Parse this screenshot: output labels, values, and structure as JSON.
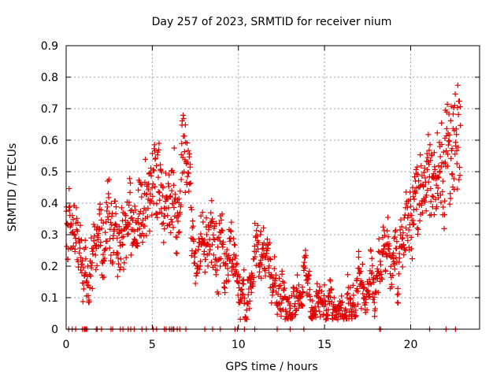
{
  "chart_data": {
    "type": "scatter",
    "title": "Day 257 of 2023, SRMTID for receiver nium",
    "xlabel": "GPS time / hours",
    "ylabel": "SRMTID / TECUs",
    "xlim": [
      0,
      24
    ],
    "ylim": [
      0,
      0.9
    ],
    "xticks": [
      0,
      5,
      10,
      15,
      20
    ],
    "yticks": [
      0,
      0.1,
      0.2,
      0.3,
      0.4,
      0.5,
      0.6,
      0.7,
      0.8,
      0.9
    ],
    "xtick_labels": [
      "0",
      "5",
      "10",
      "15",
      "20"
    ],
    "ytick_labels": [
      "0",
      "0.1",
      "0.2",
      "0.3",
      "0.4",
      "0.5",
      "0.6",
      "0.7",
      "0.8",
      "0.9"
    ],
    "grid": true,
    "marker": "+",
    "color": "#e00000",
    "profile": [
      [
        0.0,
        0.32
      ],
      [
        0.5,
        0.34
      ],
      [
        1.0,
        0.26
      ],
      [
        1.3,
        0.2
      ],
      [
        1.6,
        0.24
      ],
      [
        2.0,
        0.28
      ],
      [
        2.5,
        0.32
      ],
      [
        3.0,
        0.27
      ],
      [
        3.5,
        0.3
      ],
      [
        4.0,
        0.33
      ],
      [
        4.5,
        0.38
      ],
      [
        5.0,
        0.46
      ],
      [
        5.5,
        0.44
      ],
      [
        6.0,
        0.4
      ],
      [
        6.5,
        0.46
      ],
      [
        6.8,
        0.56
      ],
      [
        7.2,
        0.4
      ],
      [
        7.5,
        0.22
      ],
      [
        8.0,
        0.26
      ],
      [
        8.5,
        0.32
      ],
      [
        9.0,
        0.28
      ],
      [
        9.5,
        0.22
      ],
      [
        10.0,
        0.18
      ],
      [
        10.5,
        0.16
      ],
      [
        11.0,
        0.2
      ],
      [
        11.5,
        0.22
      ],
      [
        12.0,
        0.14
      ],
      [
        12.5,
        0.13
      ],
      [
        13.0,
        0.1
      ],
      [
        13.5,
        0.08
      ],
      [
        14.0,
        0.09
      ],
      [
        14.5,
        0.08
      ],
      [
        15.0,
        0.08
      ],
      [
        15.5,
        0.07
      ],
      [
        16.0,
        0.06
      ],
      [
        16.5,
        0.08
      ],
      [
        17.0,
        0.16
      ],
      [
        17.5,
        0.13
      ],
      [
        18.0,
        0.16
      ],
      [
        18.5,
        0.26
      ],
      [
        19.0,
        0.24
      ],
      [
        19.5,
        0.22
      ],
      [
        20.0,
        0.34
      ],
      [
        20.5,
        0.45
      ],
      [
        21.0,
        0.5
      ],
      [
        21.5,
        0.45
      ],
      [
        22.0,
        0.52
      ],
      [
        22.5,
        0.62
      ],
      [
        22.9,
        0.66
      ]
    ],
    "zero_points": [
      0.15,
      0.35,
      0.55,
      0.95,
      1.05,
      1.1,
      1.15,
      1.2,
      1.75,
      1.8,
      2.05,
      2.6,
      2.7,
      3.15,
      3.3,
      3.6,
      3.75,
      3.95,
      4.4,
      4.65,
      5.05,
      5.25,
      5.7,
      5.8,
      6.0,
      6.1,
      6.2,
      6.25,
      6.45,
      6.6,
      6.95,
      8.05,
      8.5,
      8.95,
      9.8,
      9.95,
      10.35,
      10.95,
      12.25,
      13.0,
      13.8,
      18.2,
      18.25,
      21.1,
      22.05,
      22.6
    ],
    "seed": 257,
    "points_per_hour": 60
  }
}
